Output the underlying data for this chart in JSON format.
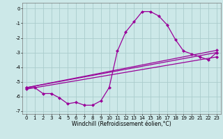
{
  "background_color": "#cce8e8",
  "grid_color": "#aacccc",
  "line_color": "#990099",
  "marker": "D",
  "markersize": 2,
  "linewidth": 0.9,
  "xlim": [
    -0.5,
    23.5
  ],
  "ylim": [
    -7.2,
    0.4
  ],
  "yticks": [
    0,
    -1,
    -2,
    -3,
    -4,
    -5,
    -6,
    -7
  ],
  "xticks": [
    0,
    1,
    2,
    3,
    4,
    5,
    6,
    7,
    8,
    9,
    10,
    11,
    12,
    13,
    14,
    15,
    16,
    17,
    18,
    19,
    20,
    21,
    22,
    23
  ],
  "xlabel": "Windchill (Refroidissement éolien,°C)",
  "xlabel_fontsize": 5.5,
  "tick_fontsize": 5,
  "series": [
    {
      "x": [
        0,
        1,
        2,
        3,
        4,
        5,
        6,
        7,
        8,
        9,
        10,
        11,
        12,
        13,
        14,
        15,
        16,
        17,
        18,
        19,
        20,
        21,
        22,
        23
      ],
      "y": [
        -5.4,
        -5.4,
        -5.8,
        -5.8,
        -6.1,
        -6.5,
        -6.4,
        -6.6,
        -6.6,
        -6.3,
        -5.4,
        -2.9,
        -1.6,
        -0.9,
        -0.2,
        -0.2,
        -0.5,
        -1.1,
        -2.1,
        -2.9,
        -3.1,
        -3.3,
        -3.5,
        -3.0
      ]
    },
    {
      "x": [
        0,
        23
      ],
      "y": [
        -5.4,
        -3.0
      ]
    },
    {
      "x": [
        0,
        23
      ],
      "y": [
        -5.4,
        -2.85
      ]
    },
    {
      "x": [
        0,
        23
      ],
      "y": [
        -5.5,
        -3.3
      ]
    }
  ]
}
